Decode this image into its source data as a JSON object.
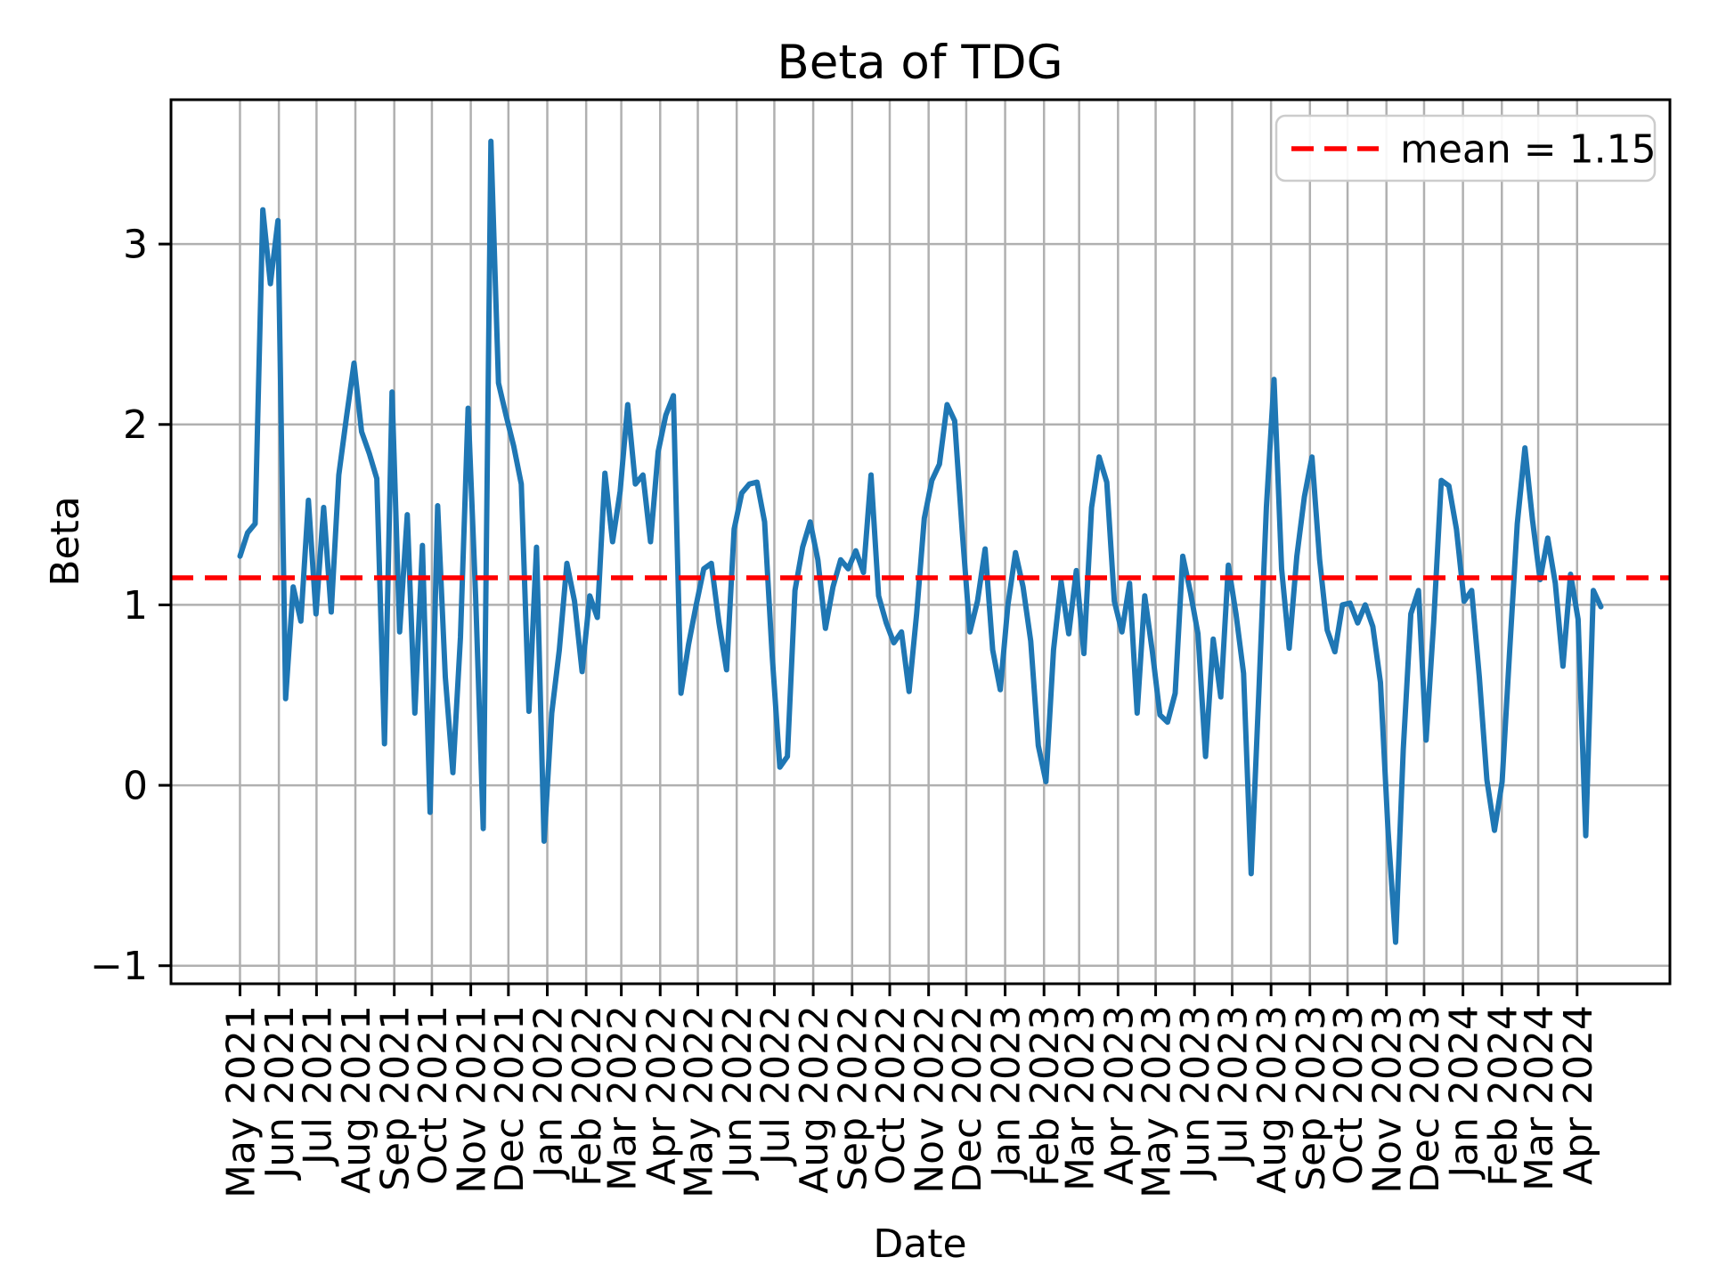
{
  "title": "Beta of TDG",
  "axes": {
    "xlabel": "Date",
    "ylabel": "Beta"
  },
  "legend": {
    "label": "mean = 1.15",
    "position": "upper right"
  },
  "colors": {
    "series": "#1f77b4",
    "mean_line": "#ff0000",
    "grid": "#b0b0b0",
    "spine": "#000000",
    "legend_border": "#cccccc",
    "background": "#ffffff"
  },
  "chart_data": {
    "type": "line",
    "title": "Beta of TDG",
    "xlabel": "Date",
    "ylabel": "Beta",
    "grid": true,
    "legend_position": "upper right",
    "mean": 1.15,
    "ylim": [
      -1.1,
      3.8
    ],
    "yticks": [
      3,
      2,
      1,
      0,
      -1
    ],
    "ytick_labels": [
      "3",
      "2",
      "1",
      "0",
      "−1"
    ],
    "x_tick_labels": [
      "May 2021",
      "Jun 2021",
      "Jul 2021",
      "Aug 2021",
      "Sep 2021",
      "Oct 2021",
      "Nov 2021",
      "Dec 2021",
      "Jan 2022",
      "Feb 2022",
      "Mar 2022",
      "Apr 2022",
      "May 2022",
      "Jun 2022",
      "Jul 2022",
      "Aug 2022",
      "Sep 2022",
      "Oct 2022",
      "Nov 2022",
      "Dec 2022",
      "Jan 2023",
      "Feb 2023",
      "Mar 2023",
      "Apr 2023",
      "May 2023",
      "Jun 2023",
      "Jul 2023",
      "Aug 2023",
      "Sep 2023",
      "Oct 2023",
      "Nov 2023",
      "Dec 2023",
      "Jan 2024",
      "Feb 2024",
      "Mar 2024",
      "Apr 2024"
    ],
    "x_tick_day_offsets": [
      0,
      31,
      61,
      92,
      123,
      153,
      184,
      214,
      245,
      276,
      304,
      335,
      365,
      396,
      426,
      457,
      488,
      518,
      549,
      579,
      610,
      641,
      669,
      700,
      730,
      761,
      791,
      822,
      853,
      883,
      914,
      944,
      975,
      1006,
      1035,
      1066
    ],
    "series": [
      {
        "name": "Beta of TDG",
        "color": "#1f77b4",
        "start_date": "2021-05-01",
        "end_date": "2024-04-20",
        "total_days": 1085,
        "sampling": "evenly spaced (~6-day interval), values estimated from plot",
        "values": [
          1.27,
          1.4,
          1.45,
          3.19,
          2.78,
          3.13,
          0.48,
          1.1,
          0.91,
          1.58,
          0.95,
          1.54,
          0.96,
          1.72,
          2.04,
          2.34,
          1.96,
          1.84,
          1.7,
          0.23,
          2.18,
          0.85,
          1.5,
          0.4,
          1.33,
          -0.15,
          1.55,
          0.6,
          0.07,
          0.82,
          2.09,
          1.04,
          -0.24,
          3.57,
          2.23,
          2.05,
          1.88,
          1.67,
          0.41,
          1.32,
          -0.31,
          0.4,
          0.75,
          1.23,
          1.02,
          0.63,
          1.05,
          0.93,
          1.73,
          1.35,
          1.63,
          2.11,
          1.67,
          1.72,
          1.35,
          1.85,
          2.05,
          2.16,
          0.51,
          0.78,
          1.0,
          1.2,
          1.23,
          0.9,
          0.64,
          1.42,
          1.62,
          1.67,
          1.68,
          1.46,
          0.72,
          0.1,
          0.16,
          1.08,
          1.32,
          1.46,
          1.25,
          0.87,
          1.1,
          1.25,
          1.2,
          1.3,
          1.18,
          1.72,
          1.05,
          0.9,
          0.79,
          0.85,
          0.52,
          0.95,
          1.48,
          1.69,
          1.78,
          2.11,
          2.02,
          1.4,
          0.85,
          1.02,
          1.31,
          0.75,
          0.53,
          1.0,
          1.29,
          1.1,
          0.8,
          0.22,
          0.02,
          0.75,
          1.13,
          0.84,
          1.19,
          0.73,
          1.54,
          1.82,
          1.68,
          1.02,
          0.85,
          1.12,
          0.4,
          1.05,
          0.74,
          0.39,
          0.35,
          0.51,
          1.27,
          1.07,
          0.84,
          0.16,
          0.81,
          0.49,
          1.22,
          0.95,
          0.62,
          -0.49,
          0.51,
          1.54,
          2.25,
          1.2,
          0.76,
          1.27,
          1.6,
          1.82,
          1.25,
          0.86,
          0.74,
          1.0,
          1.01,
          0.9,
          1.0,
          0.88,
          0.57,
          -0.25,
          -0.87,
          0.2,
          0.95,
          1.08,
          0.25,
          0.9,
          1.69,
          1.66,
          1.42,
          1.02,
          1.08,
          0.6,
          0.03,
          -0.25,
          0.02,
          0.75,
          1.45,
          1.87,
          1.47,
          1.14,
          1.37,
          1.12,
          0.66,
          1.17,
          0.92,
          -0.28,
          1.08,
          0.99
        ]
      }
    ]
  }
}
